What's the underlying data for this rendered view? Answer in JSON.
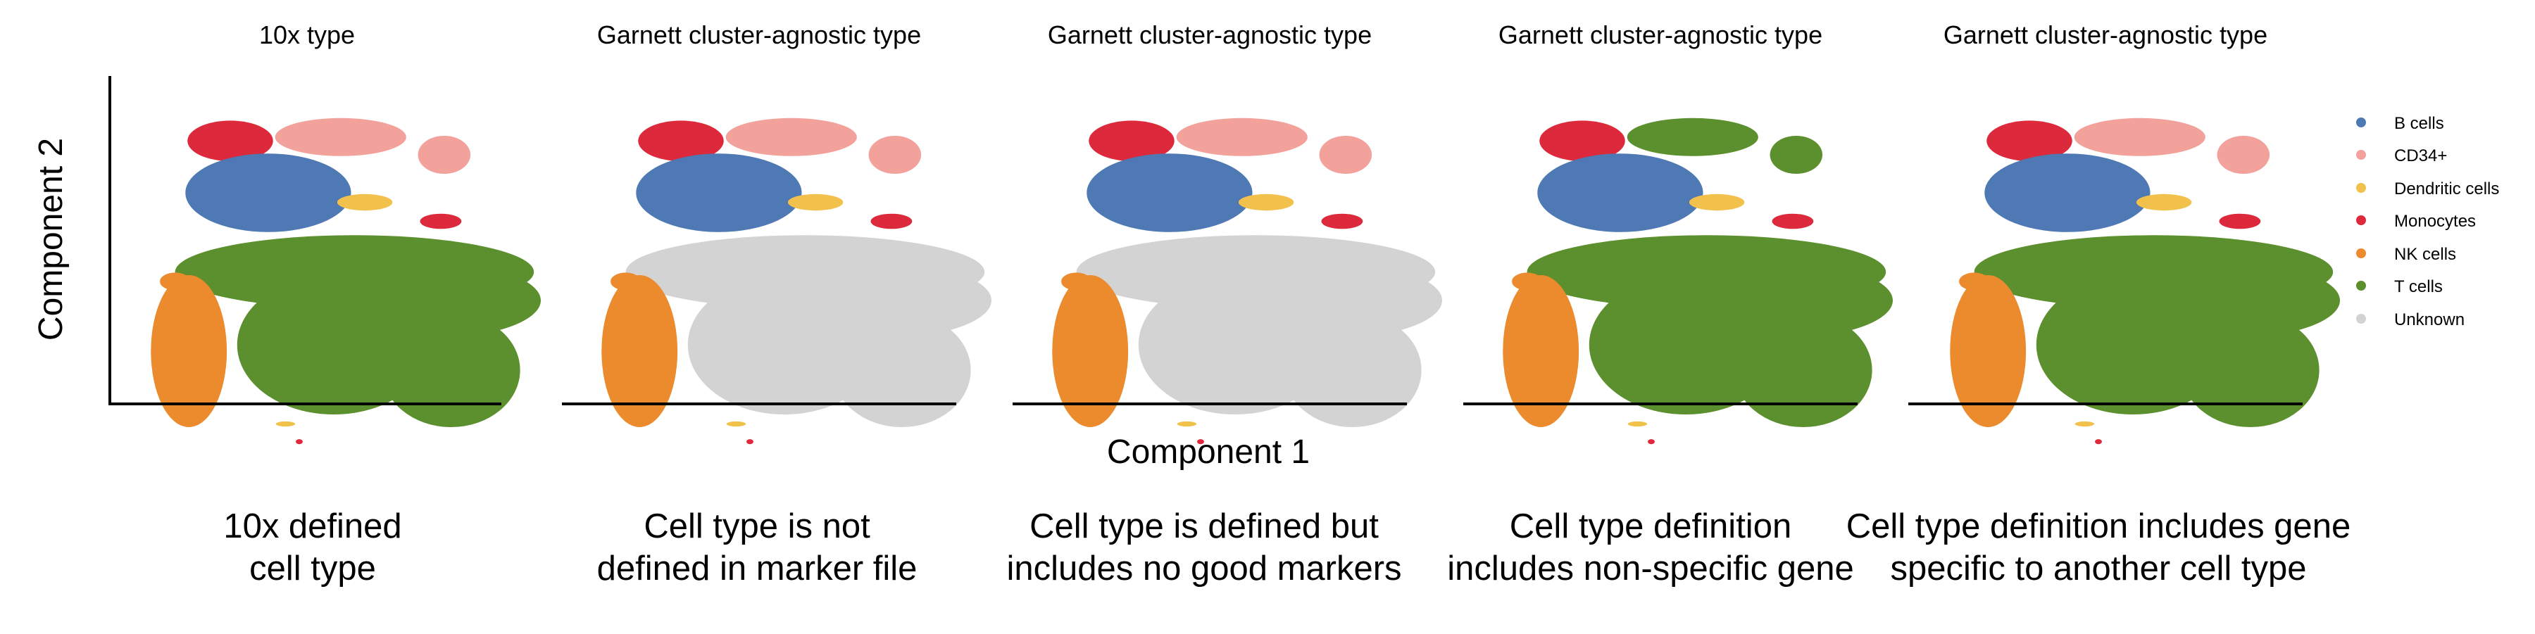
{
  "chart_data": {
    "type": "scatter",
    "xlabel": "Component 1",
    "ylabel": "Component 2",
    "grid": false,
    "legend_position": "right",
    "legend": [
      {
        "name": "B cells",
        "color": "#4e79b4"
      },
      {
        "name": "CD34+",
        "color": "#f2a19b"
      },
      {
        "name": "Dendritic cells",
        "color": "#f2c14c"
      },
      {
        "name": "Monocytes",
        "color": "#dc2a3c"
      },
      {
        "name": "NK cells",
        "color": "#ec8a2e"
      },
      {
        "name": "T cells",
        "color": "#5c8f2d"
      },
      {
        "name": "Unknown",
        "color": "#d3d3d3"
      }
    ],
    "panels": [
      {
        "title": "10x type",
        "colors": {
          "mono": "Monocytes",
          "cd34": "CD34+",
          "bcell": "B cells",
          "dc": "Dendritic cells",
          "tcell": "T cells",
          "nk": "NK cells"
        }
      },
      {
        "title": "Garnett cluster-agnostic type",
        "colors": {
          "mono": "Monocytes",
          "cd34": "CD34+",
          "bcell": "B cells",
          "dc": "Dendritic cells",
          "tcell": "Unknown",
          "nk": "NK cells"
        }
      },
      {
        "title": "Garnett cluster-agnostic type",
        "colors": {
          "mono": "Monocytes",
          "cd34": "CD34+",
          "bcell": "B cells",
          "dc": "Dendritic cells",
          "tcell": "Unknown",
          "nk": "NK cells"
        }
      },
      {
        "title": "Garnett cluster-agnostic type",
        "colors": {
          "mono": "Monocytes",
          "cd34": "T cells",
          "bcell": "B cells",
          "dc": "Dendritic cells",
          "tcell": "T cells",
          "nk": "NK cells"
        }
      },
      {
        "title": "Garnett cluster-agnostic type",
        "colors": {
          "mono": "Monocytes",
          "cd34": "CD34+",
          "bcell": "B cells",
          "dc": "Dendritic cells",
          "tcell": "T cells",
          "nk": "NK cells"
        }
      }
    ]
  },
  "captions": [
    {
      "line1": "10x defined",
      "line2": "cell type"
    },
    {
      "line1": "Cell type is not",
      "line2": "defined in marker file"
    },
    {
      "line1": "Cell type is defined but",
      "line2": "includes no good markers"
    },
    {
      "line1": "Cell type definition",
      "line2": "includes non-specific gene"
    },
    {
      "line1": "Cell type definition includes gene",
      "line2": "specific to another cell type"
    }
  ]
}
